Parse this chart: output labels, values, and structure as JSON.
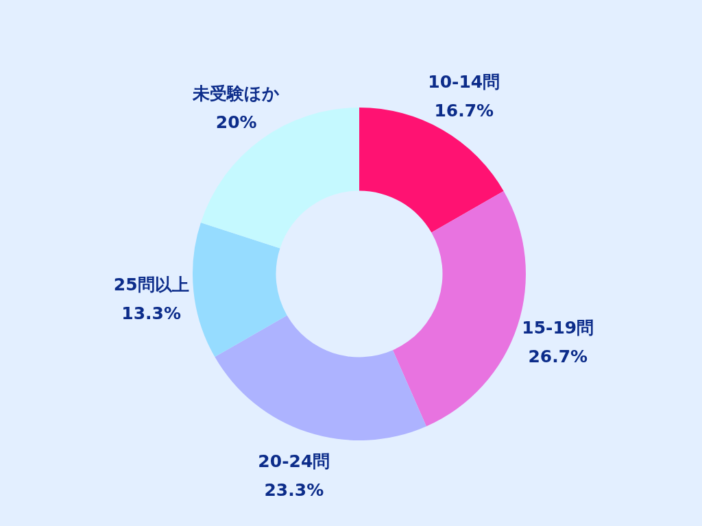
{
  "chart_data": {
    "type": "donut",
    "categories": [
      "10-14問",
      "15-19問",
      "20-24問",
      "25問以上",
      "未受験ほか"
    ],
    "values": [
      16.7,
      26.7,
      23.3,
      13.3,
      20
    ],
    "value_labels": [
      "16.7%",
      "26.7%",
      "23.3%",
      "13.3%",
      "20%"
    ],
    "colors": [
      "#ff1272",
      "#e873e0",
      "#adb3ff",
      "#96dcff",
      "#c5f9ff"
    ]
  }
}
